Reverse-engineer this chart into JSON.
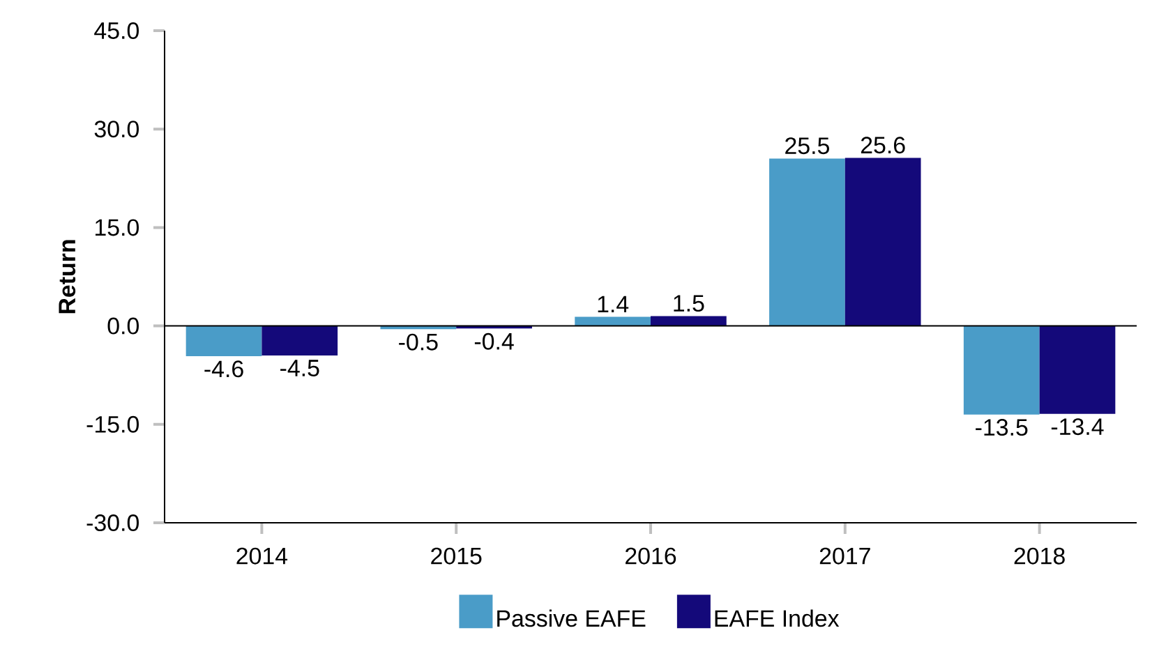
{
  "chart_data": {
    "type": "bar",
    "ylabel": "Return",
    "categories": [
      "2014",
      "2015",
      "2016",
      "2017",
      "2018"
    ],
    "series": [
      {
        "name": "Passive EAFE",
        "color": "#4a9cc8",
        "values": [
          -4.6,
          -0.5,
          1.4,
          25.5,
          -13.5
        ]
      },
      {
        "name": "EAFE Index",
        "color": "#14097a",
        "values": [
          -4.5,
          -0.4,
          1.5,
          25.6,
          -13.4
        ]
      }
    ],
    "ylim": [
      -30,
      45
    ],
    "yticks": [
      {
        "value": -30,
        "label": "-30.0"
      },
      {
        "value": -15,
        "label": "-15.0"
      },
      {
        "value": 0,
        "label": "0.0"
      },
      {
        "value": 15,
        "label": "15.0"
      },
      {
        "value": 30,
        "label": "30.0"
      },
      {
        "value": 45,
        "label": "45.0"
      }
    ],
    "ref_lines": [
      {
        "axis": "y",
        "value": 0,
        "color": "#000000"
      }
    ],
    "data_labels": true,
    "legend": "bottom"
  }
}
